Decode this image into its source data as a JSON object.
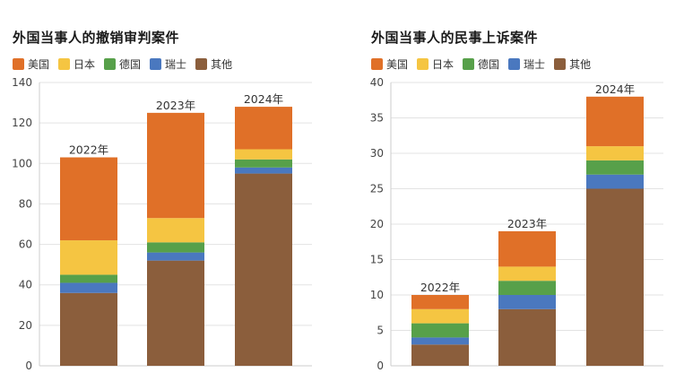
{
  "colors": {
    "美国": "#e07028",
    "日本": "#f5c542",
    "德国": "#57a04a",
    "瑞士": "#4a78bf",
    "其他": "#8b5e3c"
  },
  "chart_data": [
    {
      "type": "bar",
      "stacked": true,
      "title": "外国当事人的撤销审判案件",
      "categories": [
        "2022年",
        "2023年",
        "2024年"
      ],
      "legend": [
        "美国",
        "日本",
        "德国",
        "瑞士",
        "其他"
      ],
      "legend_position": "top-left",
      "series": [
        {
          "name": "其他",
          "values": [
            36,
            52,
            95
          ]
        },
        {
          "name": "瑞士",
          "values": [
            5,
            4,
            3
          ]
        },
        {
          "name": "德国",
          "values": [
            4,
            5,
            4
          ]
        },
        {
          "name": "日本",
          "values": [
            17,
            12,
            5
          ]
        },
        {
          "name": "美国",
          "values": [
            41,
            52,
            21
          ]
        }
      ],
      "totals": [
        103,
        125,
        128
      ],
      "ylim": [
        0,
        140
      ],
      "yticks": [
        0,
        20,
        40,
        60,
        80,
        100,
        120,
        140
      ],
      "ytick_labels": [
        "0",
        "20",
        "40",
        "60",
        "80",
        "100",
        "120",
        "140"
      ],
      "grid": true,
      "xlabel": "",
      "ylabel": ""
    },
    {
      "type": "bar",
      "stacked": true,
      "title": "外国当事人的民事上诉案件",
      "categories": [
        "2022年",
        "2023年",
        "2024年"
      ],
      "legend": [
        "美国",
        "日本",
        "德国",
        "瑞士",
        "其他"
      ],
      "legend_position": "top-left",
      "series": [
        {
          "name": "其他",
          "values": [
            3,
            8,
            25
          ]
        },
        {
          "name": "瑞士",
          "values": [
            1,
            2,
            2
          ]
        },
        {
          "name": "德国",
          "values": [
            2,
            2,
            2
          ]
        },
        {
          "name": "日本",
          "values": [
            2,
            2,
            2
          ]
        },
        {
          "name": "美国",
          "values": [
            2,
            5,
            7
          ]
        }
      ],
      "totals": [
        10,
        19,
        38
      ],
      "ylim": [
        0,
        40
      ],
      "yticks": [
        0,
        5,
        10,
        15,
        20,
        25,
        30,
        35,
        40
      ],
      "ytick_labels": [
        "0",
        "5",
        "10",
        "15",
        "20",
        "25",
        "30",
        "35",
        "40"
      ],
      "grid": true,
      "xlabel": "",
      "ylabel": ""
    }
  ]
}
